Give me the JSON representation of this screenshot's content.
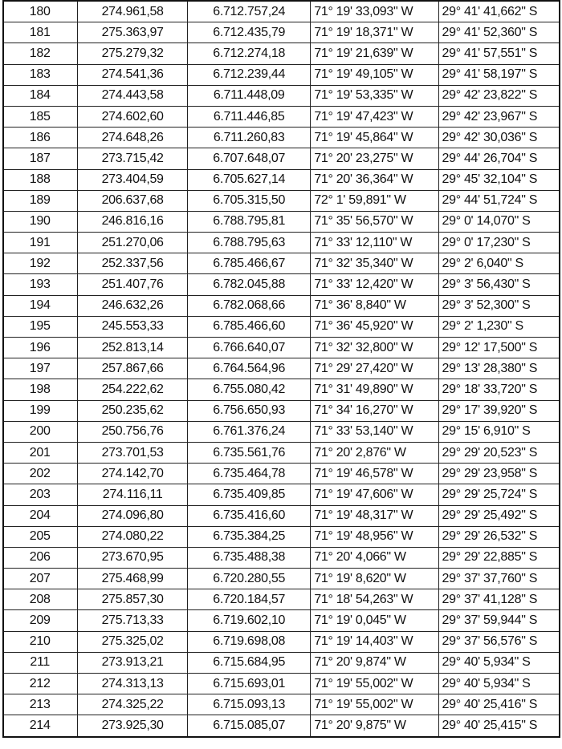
{
  "table": {
    "rows": [
      [
        "180",
        "274.961,58",
        "6.712.757,24",
        "71° 19' 33,093\" W",
        "29° 41' 41,662\" S"
      ],
      [
        "181",
        "275.363,97",
        "6.712.435,79",
        "71° 19' 18,371\" W",
        "29° 41' 52,360\" S"
      ],
      [
        "182",
        "275.279,32",
        "6.712.274,18",
        "71° 19' 21,639\" W",
        "29° 41' 57,551\" S"
      ],
      [
        "183",
        "274.541,36",
        "6.712.239,44",
        "71° 19' 49,105\" W",
        "29° 41' 58,197\" S"
      ],
      [
        "184",
        "274.443,58",
        "6.711.448,09",
        "71° 19' 53,335\" W",
        "29° 42' 23,822\" S"
      ],
      [
        "185",
        "274.602,60",
        "6.711.446,85",
        "71° 19' 47,423\" W",
        "29° 42' 23,967\" S"
      ],
      [
        "186",
        "274.648,26",
        "6.711.260,83",
        "71° 19' 45,864\" W",
        "29° 42' 30,036\" S"
      ],
      [
        "187",
        "273.715,42",
        "6.707.648,07",
        "71° 20' 23,275\" W",
        "29° 44' 26,704\" S"
      ],
      [
        "188",
        "273.404,59",
        "6.705.627,14",
        "71° 20' 36,364\" W",
        "29° 45' 32,104\" S"
      ],
      [
        "189",
        "206.637,68",
        "6.705.315,50",
        "72° 1' 59,891\" W",
        "29° 44' 51,724\" S"
      ],
      [
        "190",
        "246.816,16",
        "6.788.795,81",
        "71° 35' 56,570\" W",
        "29° 0' 14,070\" S"
      ],
      [
        "191",
        "251.270,06",
        "6.788.795,63",
        "71° 33' 12,110\" W",
        "29° 0' 17,230\" S"
      ],
      [
        "192",
        "252.337,56",
        "6.785.466,67",
        "71° 32' 35,340\" W",
        "29° 2' 6,040\" S"
      ],
      [
        "193",
        "251.407,76",
        "6.782.045,88",
        "71° 33' 12,420\" W",
        "29° 3' 56,430\" S"
      ],
      [
        "194",
        "246.632,26",
        "6.782.068,66",
        "71° 36' 8,840\" W",
        "29° 3' 52,300\" S"
      ],
      [
        "195",
        "245.553,33",
        "6.785.466,60",
        "71° 36' 45,920\" W",
        "29° 2' 1,230\" S"
      ],
      [
        "196",
        "252.813,14",
        "6.766.640,07",
        "71° 32' 32,800\" W",
        "29° 12' 17,500\" S"
      ],
      [
        "197",
        "257.867,66",
        "6.764.564,96",
        "71° 29' 27,420\" W",
        "29° 13' 28,380\" S"
      ],
      [
        "198",
        "254.222,62",
        "6.755.080,42",
        "71° 31' 49,890\" W",
        "29° 18' 33,720\" S"
      ],
      [
        "199",
        "250.235,62",
        "6.756.650,93",
        "71° 34' 16,270\" W",
        "29° 17' 39,920\" S"
      ],
      [
        "200",
        "250.756,76",
        "6.761.376,24",
        "71° 33' 53,140\" W",
        "29° 15' 6,910\" S"
      ],
      [
        "201",
        "273.701,53",
        "6.735.561,76",
        "71° 20' 2,876\" W",
        "29° 29' 20,523\" S"
      ],
      [
        "202",
        "274.142,70",
        "6.735.464,78",
        "71° 19' 46,578\" W",
        "29° 29' 23,958\" S"
      ],
      [
        "203",
        "274.116,11",
        "6.735.409,85",
        "71° 19' 47,606\" W",
        "29° 29' 25,724\" S"
      ],
      [
        "204",
        "274.096,80",
        "6.735.416,60",
        "71° 19' 48,317\" W",
        "29° 29' 25,492\" S"
      ],
      [
        "205",
        "274.080,22",
        "6.735.384,25",
        "71° 19' 48,956\" W",
        "29° 29' 26,532\" S"
      ],
      [
        "206",
        "273.670,95",
        "6.735.488,38",
        "71° 20' 4,066\" W",
        "29° 29' 22,885\" S"
      ],
      [
        "207",
        "275.468,99",
        "6.720.280,55",
        "71° 19' 8,620\" W",
        "29° 37' 37,760\" S"
      ],
      [
        "208",
        "275.857,30",
        "6.720.184,57",
        "71° 18' 54,263\" W",
        "29° 37' 41,128\" S"
      ],
      [
        "209",
        "275.713,33",
        "6.719.602,10",
        "71° 19' 0,045\" W",
        "29° 37' 59,944\" S"
      ],
      [
        "210",
        "275.325,02",
        "6.719.698,08",
        "71° 19' 14,403\" W",
        "29° 37' 56,576\" S"
      ],
      [
        "211",
        "273.913,21",
        "6.715.684,95",
        "71° 20' 9,874\" W",
        "29° 40' 5,934\" S"
      ],
      [
        "212",
        "274.313,13",
        "6.715.693,01",
        "71° 19' 55,002\" W",
        "29° 40' 5,934\" S"
      ],
      [
        "213",
        "274.325,22",
        "6.715.093,13",
        "71° 19' 55,002\" W",
        "29° 40' 25,416\" S"
      ],
      [
        "214",
        "273.925,30",
        "6.715.085,07",
        "71° 20' 9,875\" W",
        "29° 40' 25,415\" S"
      ]
    ]
  }
}
